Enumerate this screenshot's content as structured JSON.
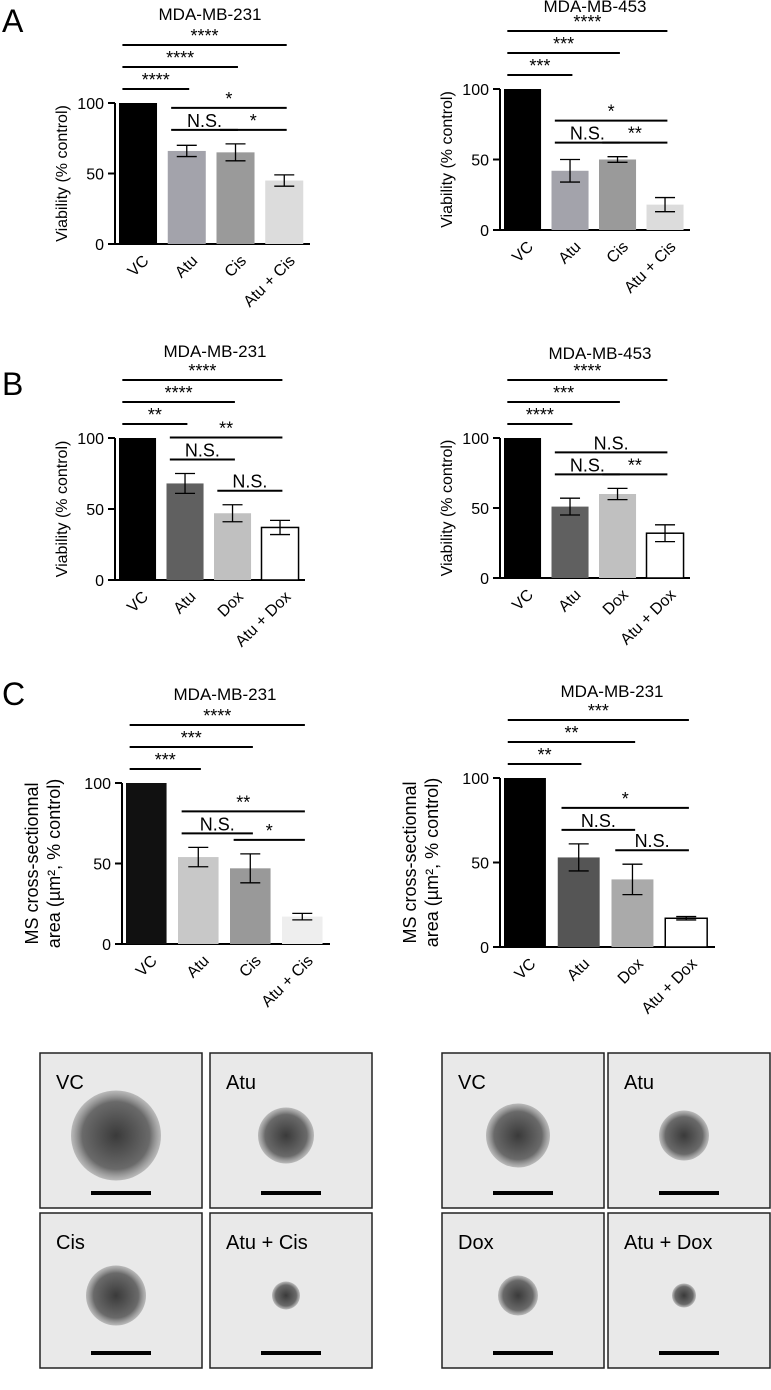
{
  "panels": [
    "A",
    "B",
    "C"
  ],
  "chart_data": [
    {
      "type": "bar",
      "title": "MDA-MB-231",
      "ylabel": [
        "Viability (% control)"
      ],
      "categories": [
        "VC",
        "Atu",
        "Cis",
        "Atu + Cis"
      ],
      "values": [
        100,
        66,
        65,
        45
      ],
      "errors": [
        null,
        4,
        6,
        4
      ],
      "colors": [
        "#000000",
        "#a3a3ab",
        "#9a9a9a",
        "#dcdcdc"
      ],
      "ylim": [
        0,
        100
      ],
      "yticks": [
        0,
        50,
        100
      ],
      "comparisons": [
        {
          "groups": [
            "VC",
            "Atu"
          ],
          "label": "****"
        },
        {
          "groups": [
            "Atu",
            "Cis"
          ],
          "label": "N.S."
        },
        {
          "groups": [
            "Cis",
            "Atu + Cis"
          ],
          "label": "*"
        },
        {
          "groups": [
            "Atu",
            "Atu + Cis"
          ],
          "label": "*"
        },
        {
          "groups": [
            "VC",
            "Cis"
          ],
          "label": "****"
        },
        {
          "groups": [
            "VC",
            "Atu + Cis"
          ],
          "label": "****"
        }
      ]
    },
    {
      "type": "bar",
      "title": "MDA-MB-453",
      "ylabel": [
        "Viability (% control)"
      ],
      "categories": [
        "VC",
        "Atu",
        "Cis",
        "Atu + Cis"
      ],
      "values": [
        100,
        42,
        50,
        18
      ],
      "errors": [
        null,
        8,
        2,
        5
      ],
      "colors": [
        "#000000",
        "#a3a3ab",
        "#9a9a9a",
        "#dcdcdc"
      ],
      "ylim": [
        0,
        100
      ],
      "yticks": [
        0,
        50,
        100
      ],
      "comparisons": [
        {
          "groups": [
            "VC",
            "Atu"
          ],
          "label": "***"
        },
        {
          "groups": [
            "Atu",
            "Cis"
          ],
          "label": "N.S."
        },
        {
          "groups": [
            "Cis",
            "Atu + Cis"
          ],
          "label": "**"
        },
        {
          "groups": [
            "Atu",
            "Atu + Cis"
          ],
          "label": "*"
        },
        {
          "groups": [
            "VC",
            "Cis"
          ],
          "label": "***"
        },
        {
          "groups": [
            "VC",
            "Atu + Cis"
          ],
          "label": "****"
        }
      ]
    },
    {
      "type": "bar",
      "title": "MDA-MB-231",
      "ylabel": [
        "Viability (% control)"
      ],
      "categories": [
        "VC",
        "Atu",
        "Dox",
        "Atu + Dox"
      ],
      "values": [
        100,
        68,
        47,
        37
      ],
      "errors": [
        null,
        7,
        6,
        5
      ],
      "colors": [
        "#000000",
        "#606060",
        "#c0c0c0",
        "#ffffff"
      ],
      "ylim": [
        0,
        100
      ],
      "yticks": [
        0,
        50,
        100
      ],
      "comparisons": [
        {
          "groups": [
            "VC",
            "Atu"
          ],
          "label": "**"
        },
        {
          "groups": [
            "Atu",
            "Dox"
          ],
          "label": "N.S."
        },
        {
          "groups": [
            "Dox",
            "Atu + Dox"
          ],
          "label": "N.S."
        },
        {
          "groups": [
            "Atu",
            "Atu + Dox"
          ],
          "label": "**"
        },
        {
          "groups": [
            "VC",
            "Dox"
          ],
          "label": "****"
        },
        {
          "groups": [
            "VC",
            "Atu + Dox"
          ],
          "label": "****"
        }
      ]
    },
    {
      "type": "bar",
      "title": "MDA-MB-453",
      "ylabel": [
        "Viability (% control)"
      ],
      "categories": [
        "VC",
        "Atu",
        "Dox",
        "Atu + Dox"
      ],
      "values": [
        100,
        51,
        60,
        32
      ],
      "errors": [
        null,
        6,
        4,
        6
      ],
      "colors": [
        "#000000",
        "#606060",
        "#c0c0c0",
        "#ffffff"
      ],
      "ylim": [
        0,
        100
      ],
      "yticks": [
        0,
        50,
        100
      ],
      "comparisons": [
        {
          "groups": [
            "VC",
            "Atu"
          ],
          "label": "****"
        },
        {
          "groups": [
            "Atu",
            "Dox"
          ],
          "label": "N.S."
        },
        {
          "groups": [
            "Dox",
            "Atu + Dox"
          ],
          "label": "**"
        },
        {
          "groups": [
            "Atu",
            "Atu + Dox"
          ],
          "label": "N.S."
        },
        {
          "groups": [
            "VC",
            "Dox"
          ],
          "label": "***"
        },
        {
          "groups": [
            "VC",
            "Atu + Dox"
          ],
          "label": "****"
        }
      ]
    },
    {
      "type": "bar",
      "title": "MDA-MB-231",
      "ylabel": [
        "MS cross-sectionnal",
        "area (µm², % control)"
      ],
      "categories": [
        "VC",
        "Atu",
        "Cis",
        "Atu + Cis"
      ],
      "values": [
        100,
        54,
        47,
        17
      ],
      "errors": [
        null,
        6,
        9,
        2
      ],
      "colors": [
        "#111111",
        "#c8c8c8",
        "#999999",
        "#eeeeee"
      ],
      "ylim": [
        0,
        100
      ],
      "yticks": [
        0,
        50,
        100
      ],
      "comparisons": [
        {
          "groups": [
            "VC",
            "Atu"
          ],
          "label": "***"
        },
        {
          "groups": [
            "Atu",
            "Cis"
          ],
          "label": "N.S."
        },
        {
          "groups": [
            "Cis",
            "Atu + Cis"
          ],
          "label": "*"
        },
        {
          "groups": [
            "Atu",
            "Atu + Cis"
          ],
          "label": "**"
        },
        {
          "groups": [
            "VC",
            "Cis"
          ],
          "label": "***"
        },
        {
          "groups": [
            "VC",
            "Atu + Cis"
          ],
          "label": "****"
        }
      ]
    },
    {
      "type": "bar",
      "title": "MDA-MB-231",
      "ylabel": [
        "MS cross-sectionnal",
        "area (µm², % control)"
      ],
      "categories": [
        "VC",
        "Atu",
        "Dox",
        "Atu + Dox"
      ],
      "values": [
        100,
        53,
        40,
        17
      ],
      "errors": [
        null,
        8,
        9,
        1
      ],
      "colors": [
        "#000000",
        "#555555",
        "#aaaaaa",
        "#ffffff"
      ],
      "ylim": [
        0,
        100
      ],
      "yticks": [
        0,
        50,
        100
      ],
      "comparisons": [
        {
          "groups": [
            "VC",
            "Atu"
          ],
          "label": "**"
        },
        {
          "groups": [
            "Atu",
            "Dox"
          ],
          "label": "N.S."
        },
        {
          "groups": [
            "Dox",
            "Atu + Dox"
          ],
          "label": "N.S."
        },
        {
          "groups": [
            "Atu",
            "Atu + Dox"
          ],
          "label": "*"
        },
        {
          "groups": [
            "VC",
            "Dox"
          ],
          "label": "**"
        },
        {
          "groups": [
            "VC",
            "Atu + Dox"
          ],
          "label": "***"
        }
      ]
    }
  ],
  "micrographs": [
    [
      "VC",
      "Atu",
      "Cis",
      "Atu + Cis"
    ],
    [
      "VC",
      "Atu",
      "Dox",
      "Atu + Dox"
    ]
  ]
}
